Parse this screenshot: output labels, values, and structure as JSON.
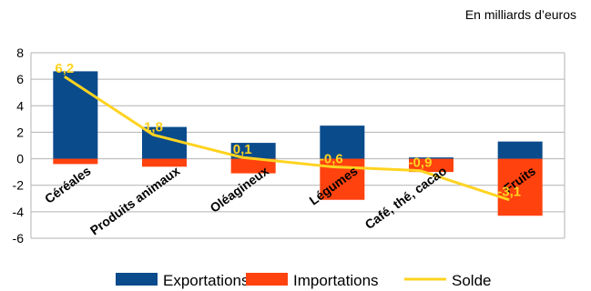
{
  "unit_label": "En milliards d’euros",
  "colors": {
    "exportations": "#0a4b8c",
    "importations": "#ff420e",
    "solde": "#ffd320",
    "grid": "#b3b3b3"
  },
  "chart_data": {
    "type": "bar",
    "categories": [
      "Céréales",
      "Produits animaux",
      "Oléagineux",
      "Légumes",
      "Café, thé, cacao",
      "Fruits"
    ],
    "series": [
      {
        "name": "Exportations",
        "type": "bar",
        "values": [
          6.6,
          2.4,
          1.2,
          2.5,
          0.1,
          1.3
        ]
      },
      {
        "name": "Importations",
        "type": "bar",
        "values": [
          -0.4,
          -0.6,
          -1.1,
          -3.1,
          -1.0,
          -4.3
        ]
      },
      {
        "name": "Solde",
        "type": "line",
        "values": [
          6.2,
          1.8,
          0.1,
          -0.6,
          -0.9,
          -3.1
        ]
      }
    ],
    "solde_labels": [
      "6,2",
      "1,8",
      "0,1",
      "-0,6",
      "-0,9",
      "-3,1"
    ],
    "ylim": [
      -6,
      8
    ],
    "yticks": [
      -6,
      -4,
      -2,
      0,
      2,
      4,
      6,
      8
    ],
    "grid": true,
    "legend_position": "bottom",
    "xlabel": "",
    "ylabel": ""
  }
}
